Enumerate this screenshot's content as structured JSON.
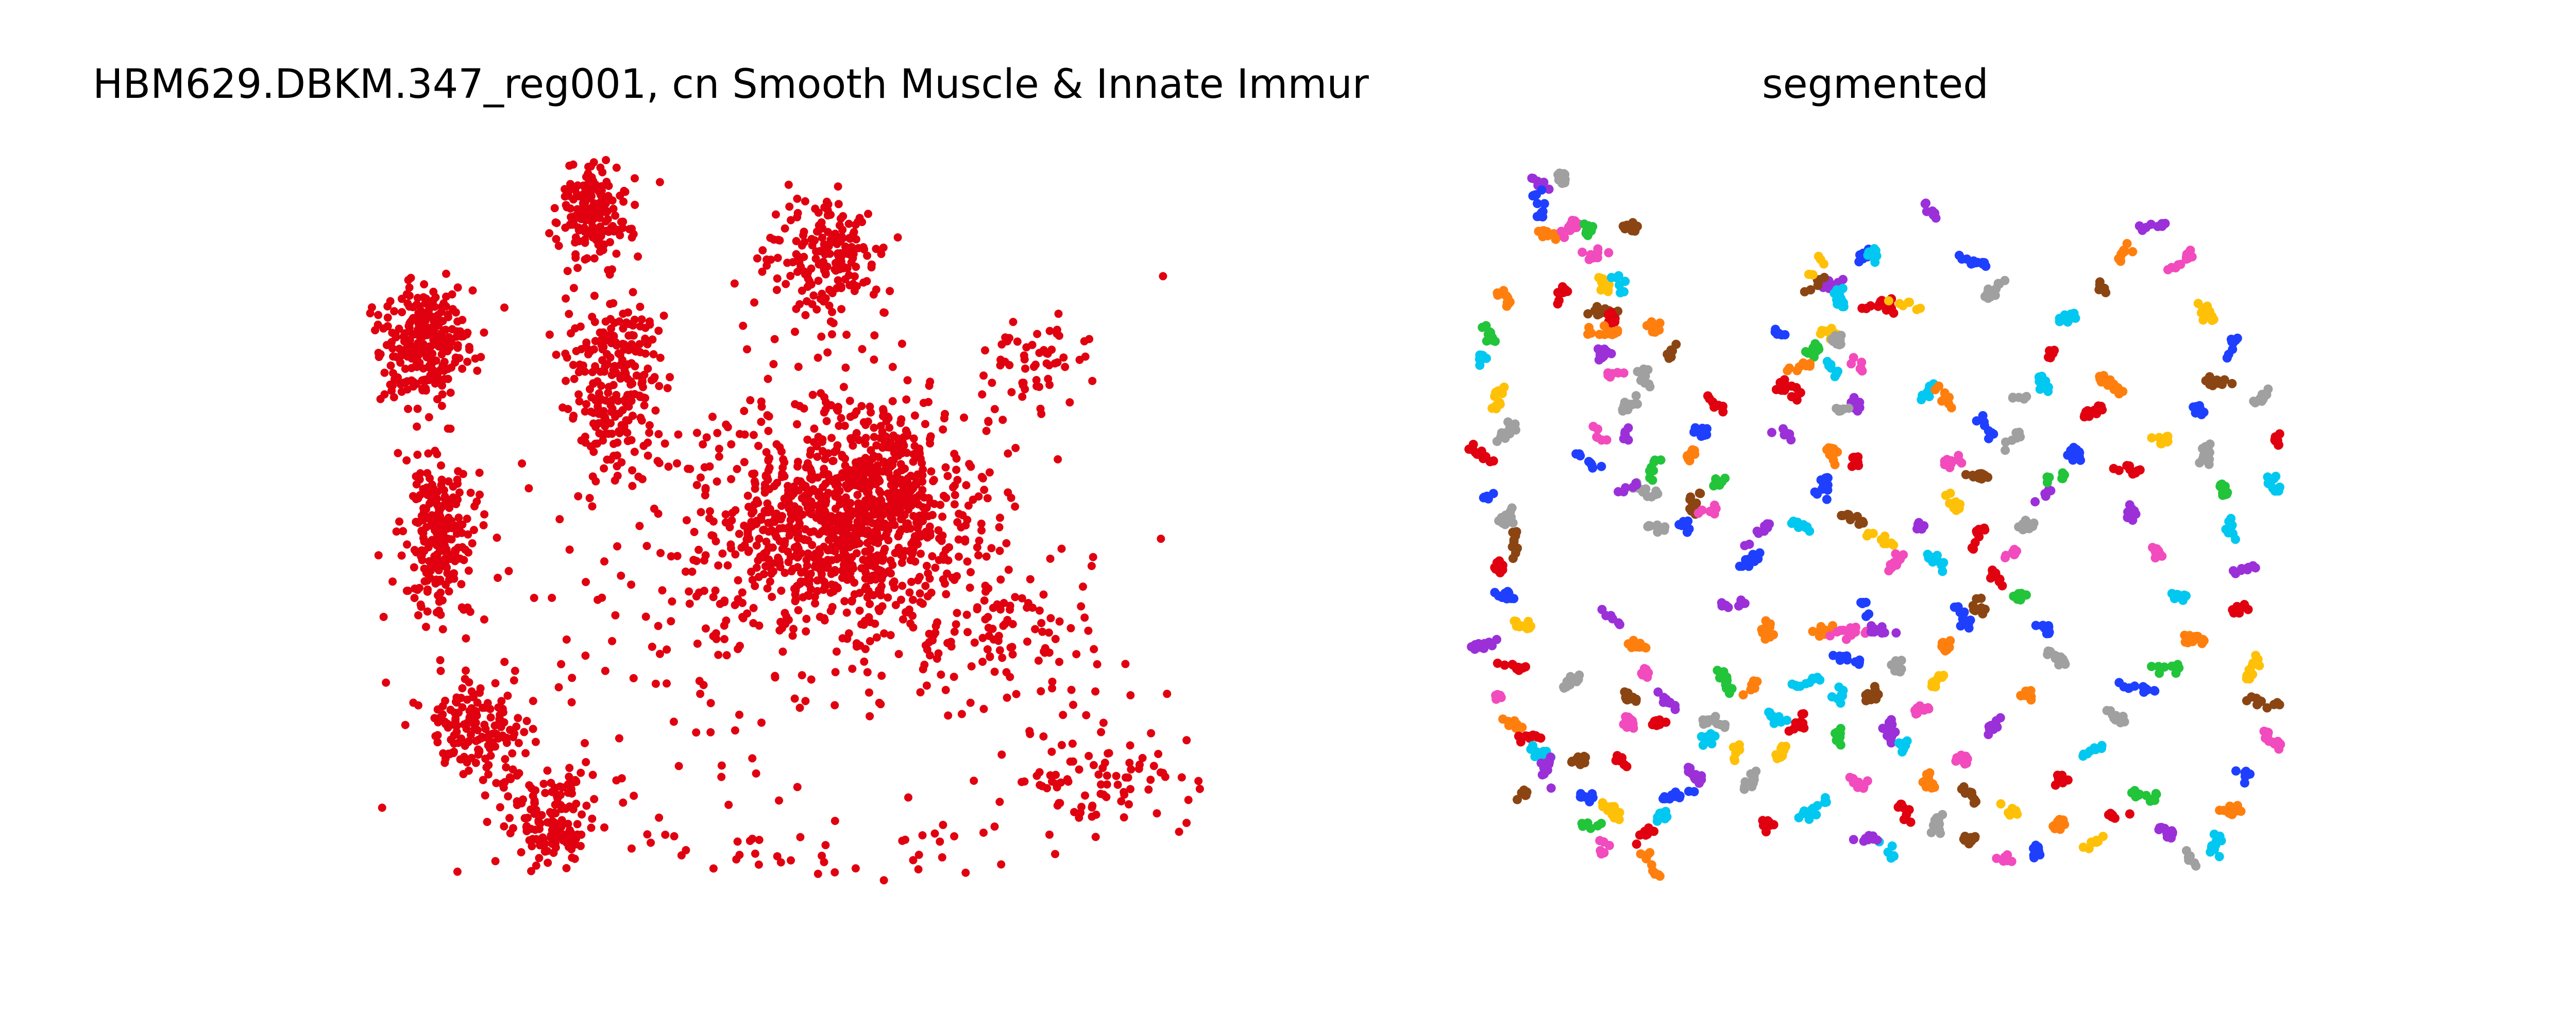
{
  "chart_data": [
    {
      "type": "scatter",
      "title": "HBM629.DBKM.347_reg001, cn Smooth Muscle & Innate Immur",
      "point_color": "#e0000f",
      "axes_visible": false,
      "grid": false,
      "xlim": [
        0,
        100
      ],
      "ylim": [
        0,
        100
      ],
      "cluster_model": {
        "note": "dense scattered point cloud; centers of density regions in data units",
        "regions": [
          {
            "cx": 7,
            "cy": 75,
            "rx": 5,
            "ry": 8,
            "n": 260
          },
          {
            "cx": 9,
            "cy": 48,
            "rx": 4,
            "ry": 12,
            "n": 230
          },
          {
            "cx": 13,
            "cy": 22,
            "rx": 6,
            "ry": 6,
            "n": 150
          },
          {
            "cx": 22,
            "cy": 10,
            "rx": 5,
            "ry": 6,
            "n": 140
          },
          {
            "cx": 27,
            "cy": 93,
            "rx": 4,
            "ry": 6,
            "n": 170
          },
          {
            "cx": 30,
            "cy": 70,
            "rx": 5,
            "ry": 12,
            "n": 240
          },
          {
            "cx": 55,
            "cy": 86,
            "rx": 6,
            "ry": 8,
            "n": 190
          },
          {
            "cx": 56,
            "cy": 50,
            "rx": 15,
            "ry": 15,
            "n": 900
          },
          {
            "cx": 62,
            "cy": 55,
            "rx": 7,
            "ry": 9,
            "n": 220
          },
          {
            "cx": 80,
            "cy": 72,
            "rx": 6,
            "ry": 6,
            "n": 60
          },
          {
            "cx": 78,
            "cy": 35,
            "rx": 12,
            "ry": 10,
            "n": 110
          },
          {
            "cx": 88,
            "cy": 15,
            "rx": 10,
            "ry": 8,
            "n": 90
          },
          {
            "cx": 50,
            "cy": 5,
            "rx": 20,
            "ry": 4,
            "n": 40
          },
          {
            "cx": 40,
            "cy": 40,
            "rx": 35,
            "ry": 40,
            "n": 200
          }
        ]
      }
    },
    {
      "type": "scatter",
      "title": "segmented",
      "axes_visible": false,
      "grid": false,
      "xlim": [
        0,
        100
      ],
      "ylim": [
        0,
        100
      ],
      "palette": [
        "#1f3fff",
        "#9b30d9",
        "#ff7f0e",
        "#e0000f",
        "#f24bbd",
        "#a0a0a0",
        "#00c8f0",
        "#ffc107",
        "#22c43a",
        "#8b4513"
      ],
      "clusters": [
        [
          8,
          98,
          1
        ],
        [
          11,
          99,
          5
        ],
        [
          8,
          95,
          0
        ],
        [
          9,
          91,
          2
        ],
        [
          12,
          92,
          4
        ],
        [
          14,
          92,
          8
        ],
        [
          19,
          92,
          9
        ],
        [
          15,
          88,
          4
        ],
        [
          16,
          84,
          7
        ],
        [
          16,
          80,
          9
        ],
        [
          18,
          84,
          6
        ],
        [
          11,
          83,
          3
        ],
        [
          17,
          79,
          3
        ],
        [
          16,
          77,
          2
        ],
        [
          16,
          74,
          1
        ],
        [
          22,
          78,
          2
        ],
        [
          24,
          74,
          9
        ],
        [
          21,
          71,
          5
        ],
        [
          17,
          71,
          4
        ],
        [
          19,
          67,
          5
        ],
        [
          19,
          63,
          1
        ],
        [
          15,
          63,
          4
        ],
        [
          14,
          59,
          0
        ],
        [
          22,
          58,
          8
        ],
        [
          21,
          55,
          5
        ],
        [
          19,
          55,
          1
        ],
        [
          22,
          50,
          5
        ],
        [
          26,
          50,
          0
        ],
        [
          27,
          53,
          9
        ],
        [
          29,
          52,
          4
        ],
        [
          30,
          56,
          8
        ],
        [
          27,
          60,
          2
        ],
        [
          28,
          63,
          0
        ],
        [
          30,
          67,
          3
        ],
        [
          38,
          63,
          1
        ],
        [
          39,
          69,
          3
        ],
        [
          38,
          77,
          0
        ],
        [
          42,
          75,
          8
        ],
        [
          44,
          77,
          7
        ],
        [
          47,
          73,
          4
        ],
        [
          47,
          67,
          1
        ],
        [
          40,
          72,
          2
        ],
        [
          44,
          60,
          2
        ],
        [
          47,
          59,
          3
        ],
        [
          44,
          84,
          1
        ],
        [
          45,
          82,
          6
        ],
        [
          48,
          88,
          0
        ],
        [
          42,
          84,
          9
        ],
        [
          42,
          86,
          7
        ],
        [
          49,
          81,
          3
        ],
        [
          45,
          76,
          5
        ],
        [
          44,
          72,
          6
        ],
        [
          45,
          66,
          5
        ],
        [
          56,
          69,
          6
        ],
        [
          58,
          68,
          2
        ],
        [
          51,
          81,
          3
        ],
        [
          56,
          94,
          1
        ],
        [
          62,
          87,
          0
        ],
        [
          64,
          83,
          5
        ],
        [
          53,
          81,
          7
        ],
        [
          49,
          88,
          6
        ],
        [
          43,
          55,
          0
        ],
        [
          40,
          50,
          6
        ],
        [
          47,
          51,
          9
        ],
        [
          50,
          48,
          7
        ],
        [
          34,
          45,
          0
        ],
        [
          32,
          39,
          1
        ],
        [
          36,
          35,
          2
        ],
        [
          35,
          49,
          1
        ],
        [
          46,
          31,
          0
        ],
        [
          45,
          26,
          6
        ],
        [
          45,
          20,
          8
        ],
        [
          47,
          14,
          4
        ],
        [
          42,
          10,
          6
        ],
        [
          36,
          8,
          3
        ],
        [
          34,
          14,
          5
        ],
        [
          32,
          18,
          7
        ],
        [
          23,
          22,
          3
        ],
        [
          24,
          25,
          1
        ],
        [
          21,
          29,
          4
        ],
        [
          20,
          33,
          2
        ],
        [
          17,
          37,
          1
        ],
        [
          4,
          82,
          2
        ],
        [
          2,
          77,
          8
        ],
        [
          1,
          73,
          6
        ],
        [
          3,
          68,
          7
        ],
        [
          4,
          63,
          5
        ],
        [
          1,
          60,
          3
        ],
        [
          2,
          54,
          0
        ],
        [
          4,
          51,
          5
        ],
        [
          5,
          47,
          9
        ],
        [
          3,
          44,
          3
        ],
        [
          4,
          40,
          0
        ],
        [
          6,
          36,
          7
        ],
        [
          1,
          33,
          1
        ],
        [
          5,
          30,
          3
        ],
        [
          3,
          26,
          4
        ],
        [
          5,
          22,
          2
        ],
        [
          7,
          20,
          3
        ],
        [
          8,
          18,
          6
        ],
        [
          9,
          15,
          1
        ],
        [
          6,
          12,
          9
        ],
        [
          12,
          28,
          5
        ],
        [
          13,
          17,
          9
        ],
        [
          14,
          12,
          0
        ],
        [
          15,
          8,
          8
        ],
        [
          16,
          5,
          4
        ],
        [
          19,
          26,
          9
        ],
        [
          19,
          22,
          4
        ],
        [
          18,
          17,
          3
        ],
        [
          17,
          10,
          7
        ],
        [
          21,
          6,
          3
        ],
        [
          22,
          2,
          2
        ],
        [
          23,
          9,
          6
        ],
        [
          25,
          12,
          0
        ],
        [
          27,
          15,
          1
        ],
        [
          29,
          20,
          6
        ],
        [
          30,
          22,
          5
        ],
        [
          31,
          28,
          8
        ],
        [
          34,
          27,
          2
        ],
        [
          37,
          23,
          6
        ],
        [
          38,
          18,
          7
        ],
        [
          40,
          22,
          3
        ],
        [
          41,
          28,
          6
        ],
        [
          43,
          35,
          2
        ],
        [
          46,
          35,
          4
        ],
        [
          48,
          38,
          0
        ],
        [
          50,
          35,
          1
        ],
        [
          52,
          30,
          5
        ],
        [
          49,
          26,
          9
        ],
        [
          51,
          21,
          1
        ],
        [
          53,
          18,
          6
        ],
        [
          55,
          24,
          4
        ],
        [
          57,
          28,
          7
        ],
        [
          58,
          33,
          2
        ],
        [
          60,
          37,
          0
        ],
        [
          62,
          39,
          9
        ],
        [
          64,
          43,
          3
        ],
        [
          66,
          46,
          4
        ],
        [
          68,
          50,
          5
        ],
        [
          70,
          54,
          1
        ],
        [
          72,
          57,
          8
        ],
        [
          74,
          60,
          0
        ],
        [
          76,
          66,
          3
        ],
        [
          78,
          70,
          2
        ],
        [
          70,
          70,
          6
        ],
        [
          66,
          62,
          5
        ],
        [
          62,
          57,
          9
        ],
        [
          59,
          53,
          7
        ],
        [
          55,
          50,
          1
        ],
        [
          52,
          45,
          4
        ],
        [
          57,
          45,
          6
        ],
        [
          62,
          48,
          3
        ],
        [
          67,
          40,
          8
        ],
        [
          70,
          36,
          0
        ],
        [
          72,
          31,
          5
        ],
        [
          68,
          26,
          2
        ],
        [
          64,
          22,
          1
        ],
        [
          60,
          17,
          4
        ],
        [
          61,
          12,
          9
        ],
        [
          66,
          10,
          7
        ],
        [
          72,
          14,
          3
        ],
        [
          76,
          18,
          6
        ],
        [
          79,
          23,
          5
        ],
        [
          82,
          27,
          0
        ],
        [
          85,
          30,
          8
        ],
        [
          88,
          34,
          2
        ],
        [
          86,
          40,
          6
        ],
        [
          84,
          46,
          4
        ],
        [
          81,
          52,
          1
        ],
        [
          80,
          58,
          3
        ],
        [
          85,
          62,
          7
        ],
        [
          89,
          66,
          0
        ],
        [
          91,
          70,
          9
        ],
        [
          90,
          60,
          5
        ],
        [
          92,
          55,
          8
        ],
        [
          93,
          50,
          6
        ],
        [
          95,
          44,
          1
        ],
        [
          94,
          38,
          3
        ],
        [
          96,
          30,
          7
        ],
        [
          97,
          25,
          9
        ],
        [
          98,
          20,
          4
        ],
        [
          95,
          15,
          0
        ],
        [
          93,
          10,
          2
        ],
        [
          91,
          5,
          6
        ],
        [
          88,
          3,
          5
        ],
        [
          85,
          7,
          1
        ],
        [
          82,
          12,
          8
        ],
        [
          79,
          9,
          3
        ],
        [
          76,
          5,
          7
        ],
        [
          72,
          8,
          2
        ],
        [
          69,
          4,
          0
        ],
        [
          65,
          3,
          4
        ],
        [
          61,
          6,
          9
        ],
        [
          57,
          8,
          5
        ],
        [
          53,
          10,
          3
        ],
        [
          51,
          4,
          6
        ],
        [
          48,
          6,
          1
        ],
        [
          56,
          14,
          2
        ],
        [
          59,
          59,
          4
        ],
        [
          63,
          64,
          0
        ],
        [
          67,
          68,
          5
        ],
        [
          71,
          74,
          3
        ],
        [
          73,
          79,
          6
        ],
        [
          77,
          84,
          9
        ],
        [
          80,
          88,
          2
        ],
        [
          83,
          92,
          1
        ],
        [
          87,
          87,
          4
        ],
        [
          90,
          80,
          7
        ],
        [
          93,
          75,
          0
        ],
        [
          97,
          68,
          5
        ],
        [
          99,
          62,
          3
        ],
        [
          98,
          56,
          6
        ]
      ]
    }
  ]
}
